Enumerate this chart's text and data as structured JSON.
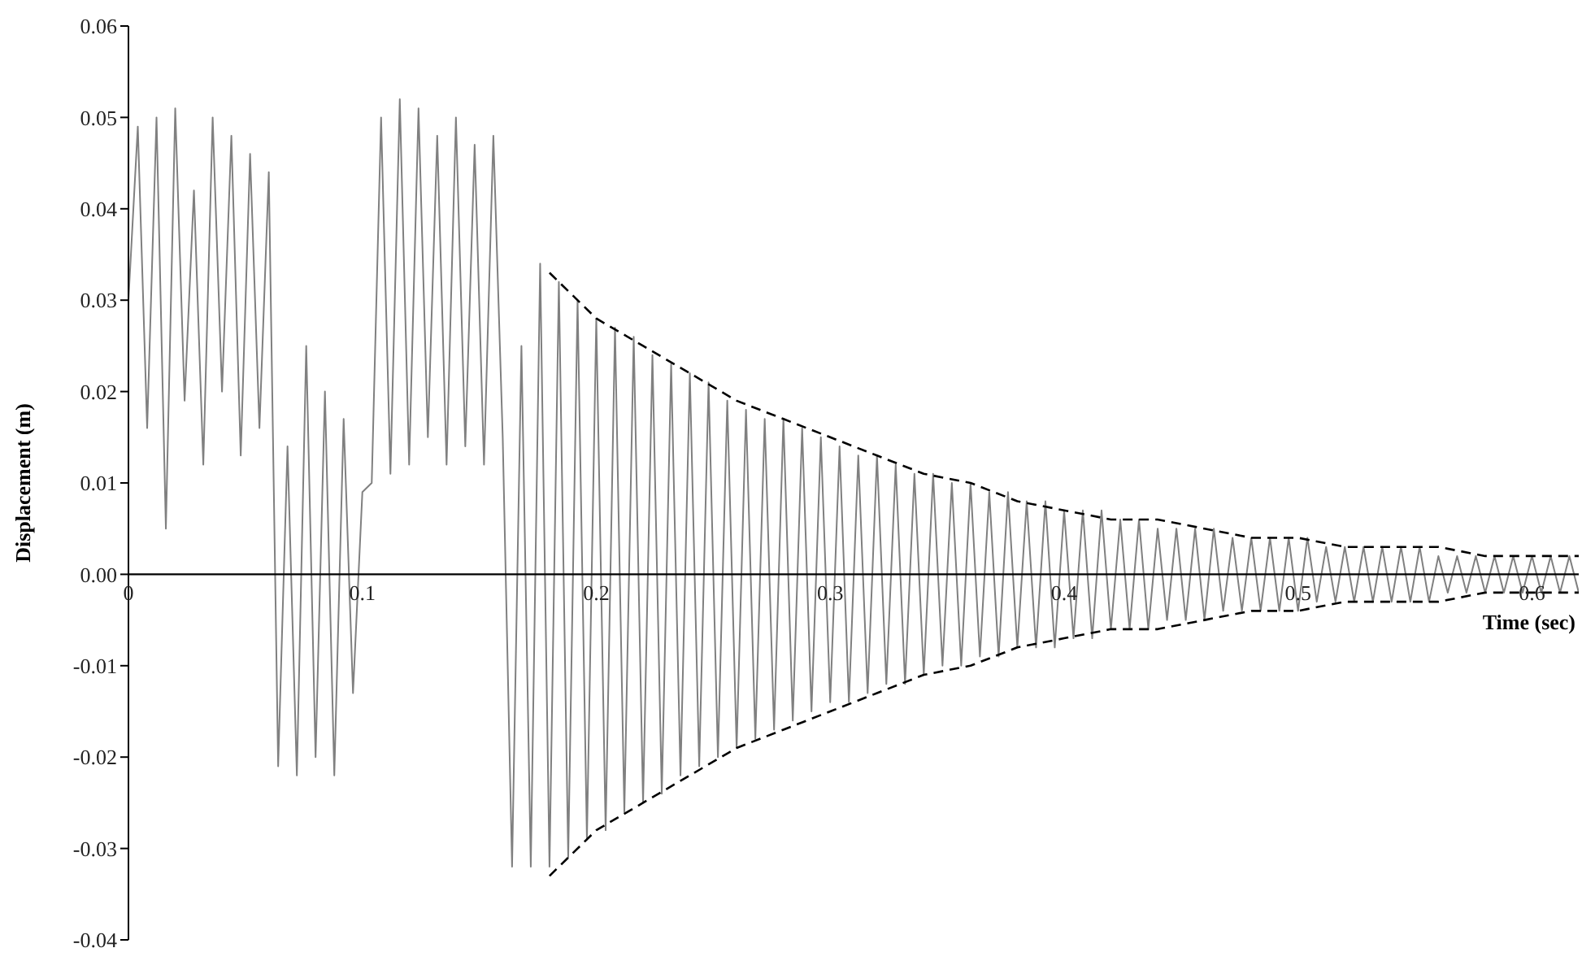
{
  "chart_data": {
    "type": "line",
    "xlabel": "Time (sec)",
    "ylabel": "Displacement (m)",
    "xlim": [
      0,
      0.62
    ],
    "ylim": [
      -0.04,
      0.06
    ],
    "xticks": [
      0,
      0.1,
      0.2,
      0.3,
      0.4,
      0.5,
      0.6
    ],
    "yticks": [
      {
        "value": -0.04,
        "label": "-0.04"
      },
      {
        "value": -0.03,
        "label": "-0.03"
      },
      {
        "value": -0.02,
        "label": "-0.02"
      },
      {
        "value": -0.01,
        "label": "-0.01"
      },
      {
        "value": 0,
        "label": "0.00"
      },
      {
        "value": 0.01,
        "label": "0.01"
      },
      {
        "value": 0.02,
        "label": "0.02"
      },
      {
        "value": 0.03,
        "label": "0.03"
      },
      {
        "value": 0.04,
        "label": "0.04"
      },
      {
        "value": 0.05,
        "label": "0.05"
      },
      {
        "value": 0.06,
        "label": "0.06"
      }
    ],
    "grid": false,
    "marker": "none",
    "series": [
      {
        "color": "#808080",
        "line_style": "solid",
        "x": [
          0,
          0.004,
          0.008,
          0.012,
          0.016,
          0.02,
          0.024,
          0.028,
          0.032,
          0.036,
          0.04,
          0.044,
          0.048,
          0.052,
          0.056,
          0.06,
          0.064,
          0.068,
          0.072,
          0.076,
          0.08,
          0.084,
          0.088,
          0.092,
          0.096,
          0.1,
          0.104,
          0.108,
          0.112,
          0.116,
          0.12,
          0.124,
          0.128,
          0.132,
          0.136,
          0.14,
          0.144,
          0.148,
          0.152,
          0.156,
          0.16,
          0.164,
          0.168,
          0.172,
          0.176,
          0.18,
          0.184,
          0.188,
          0.192,
          0.196,
          0.2,
          0.204,
          0.208,
          0.212,
          0.216,
          0.22,
          0.224,
          0.228,
          0.232,
          0.236,
          0.24,
          0.244,
          0.248,
          0.252,
          0.256,
          0.26,
          0.264,
          0.268,
          0.272,
          0.276,
          0.28,
          0.284,
          0.288,
          0.292,
          0.296,
          0.3,
          0.304,
          0.308,
          0.312,
          0.316,
          0.32,
          0.324,
          0.328,
          0.332,
          0.336,
          0.34,
          0.344,
          0.348,
          0.352,
          0.356,
          0.36,
          0.364,
          0.368,
          0.372,
          0.376,
          0.38,
          0.384,
          0.388,
          0.392,
          0.396,
          0.4,
          0.404,
          0.408,
          0.412,
          0.416,
          0.42,
          0.424,
          0.428,
          0.432,
          0.436,
          0.44,
          0.444,
          0.448,
          0.452,
          0.456,
          0.46,
          0.464,
          0.468,
          0.472,
          0.476,
          0.48,
          0.484,
          0.488,
          0.492,
          0.496,
          0.5,
          0.504,
          0.508,
          0.512,
          0.516,
          0.52,
          0.524,
          0.528,
          0.532,
          0.536,
          0.54,
          0.544,
          0.548,
          0.552,
          0.556,
          0.56,
          0.564,
          0.568,
          0.572,
          0.576,
          0.58,
          0.584,
          0.588,
          0.592,
          0.596,
          0.6,
          0.604,
          0.608,
          0.612,
          0.616,
          0.62
        ],
        "values": [
          0.03,
          0.049,
          0.016,
          0.05,
          0.005,
          0.051,
          0.019,
          0.042,
          0.012,
          0.05,
          0.02,
          0.048,
          0.013,
          0.046,
          0.016,
          0.044,
          -0.021,
          0.014,
          -0.022,
          0.025,
          -0.02,
          0.02,
          -0.022,
          0.017,
          -0.013,
          0.009,
          0.01,
          0.05,
          0.011,
          0.052,
          0.012,
          0.051,
          0.015,
          0.048,
          0.012,
          0.05,
          0.014,
          0.047,
          0.012,
          0.048,
          0.015,
          -0.032,
          0.025,
          -0.032,
          0.034,
          -0.032,
          0.032,
          -0.031,
          0.03,
          -0.029,
          0.028,
          -0.028,
          0.027,
          -0.026,
          0.026,
          -0.025,
          0.024,
          -0.024,
          0.023,
          -0.022,
          0.022,
          -0.021,
          0.021,
          -0.02,
          0.019,
          -0.019,
          0.018,
          -0.018,
          0.017,
          -0.017,
          0.017,
          -0.016,
          0.016,
          -0.015,
          0.015,
          -0.014,
          0.014,
          -0.014,
          0.013,
          -0.013,
          0.013,
          -0.012,
          0.012,
          -0.012,
          0.011,
          -0.011,
          0.011,
          -0.01,
          0.01,
          -0.01,
          0.01,
          -0.009,
          0.009,
          -0.009,
          0.009,
          -0.008,
          0.008,
          -0.008,
          0.008,
          -0.008,
          0.007,
          -0.007,
          0.007,
          -0.007,
          0.007,
          -0.006,
          0.006,
          -0.006,
          0.006,
          -0.006,
          0.005,
          -0.005,
          0.005,
          -0.005,
          0.005,
          -0.005,
          0.005,
          -0.004,
          0.004,
          -0.004,
          0.004,
          -0.004,
          0.004,
          -0.004,
          0.004,
          -0.004,
          0.004,
          -0.003,
          0.003,
          -0.003,
          0.003,
          -0.003,
          0.003,
          -0.003,
          0.003,
          -0.003,
          0.003,
          -0.003,
          0.003,
          -0.003,
          0.002,
          -0.002,
          0.002,
          -0.002,
          0.002,
          -0.002,
          0.002,
          -0.002,
          0.002,
          -0.002,
          0.002,
          -0.002,
          0.002,
          -0.002,
          0.002,
          -0.002
        ]
      },
      {
        "color": "#000000",
        "line_style": "dashed",
        "x": [
          0.18,
          0.2,
          0.22,
          0.24,
          0.26,
          0.28,
          0.3,
          0.32,
          0.34,
          0.36,
          0.38,
          0.4,
          0.42,
          0.44,
          0.46,
          0.48,
          0.5,
          0.52,
          0.54,
          0.56,
          0.58,
          0.6,
          0.62
        ],
        "values": [
          0.033,
          0.028,
          0.025,
          0.022,
          0.019,
          0.017,
          0.015,
          0.013,
          0.011,
          0.01,
          0.008,
          0.007,
          0.006,
          0.006,
          0.005,
          0.004,
          0.004,
          0.003,
          0.003,
          0.003,
          0.002,
          0.002,
          0.002
        ]
      },
      {
        "color": "#000000",
        "line_style": "dashed",
        "x": [
          0.18,
          0.2,
          0.22,
          0.24,
          0.26,
          0.28,
          0.3,
          0.32,
          0.34,
          0.36,
          0.38,
          0.4,
          0.42,
          0.44,
          0.46,
          0.48,
          0.5,
          0.52,
          0.54,
          0.56,
          0.58,
          0.6,
          0.62
        ],
        "values": [
          -0.033,
          -0.028,
          -0.025,
          -0.022,
          -0.019,
          -0.017,
          -0.015,
          -0.013,
          -0.011,
          -0.01,
          -0.008,
          -0.007,
          -0.006,
          -0.006,
          -0.005,
          -0.004,
          -0.004,
          -0.003,
          -0.003,
          -0.003,
          -0.002,
          -0.002,
          -0.002
        ]
      }
    ]
  }
}
